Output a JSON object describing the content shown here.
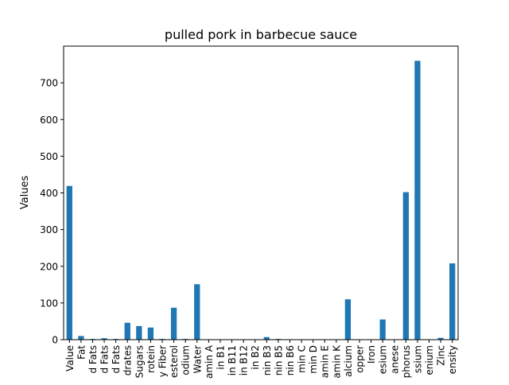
{
  "chart_data": {
    "type": "bar",
    "title": "pulled pork in barbecue sauce",
    "xlabel": "",
    "ylabel": "Values",
    "ylim": [
      0,
      800
    ],
    "yticks": [
      0,
      100,
      200,
      300,
      400,
      500,
      600,
      700
    ],
    "grid": false,
    "legend": "none",
    "bar_color": "#1f77b4",
    "categories": [
      "Value",
      "Fat",
      "d Fats",
      "d Fats",
      "d Fats",
      "drates",
      "Sugars",
      "rotein",
      "y Fiber",
      "esterol",
      "odium",
      "Water",
      "amin A",
      "in B1",
      "in B11",
      "in B12",
      "in B2",
      "nin B3",
      "nin B5",
      "nin B6",
      "min C",
      "min D",
      "amin E",
      "amin K",
      "alcium",
      "opper",
      "Iron",
      "esium",
      "anese",
      "phorus",
      "ssium",
      "enium",
      "Zinc",
      "ensity"
    ],
    "values": [
      419,
      10,
      2,
      4,
      2,
      46,
      37,
      33,
      2,
      87,
      2,
      151,
      0,
      0,
      0,
      0,
      0,
      7,
      2,
      0,
      0,
      0,
      1,
      0,
      110,
      0,
      1,
      55,
      0,
      402,
      760,
      0,
      5,
      208
    ]
  }
}
